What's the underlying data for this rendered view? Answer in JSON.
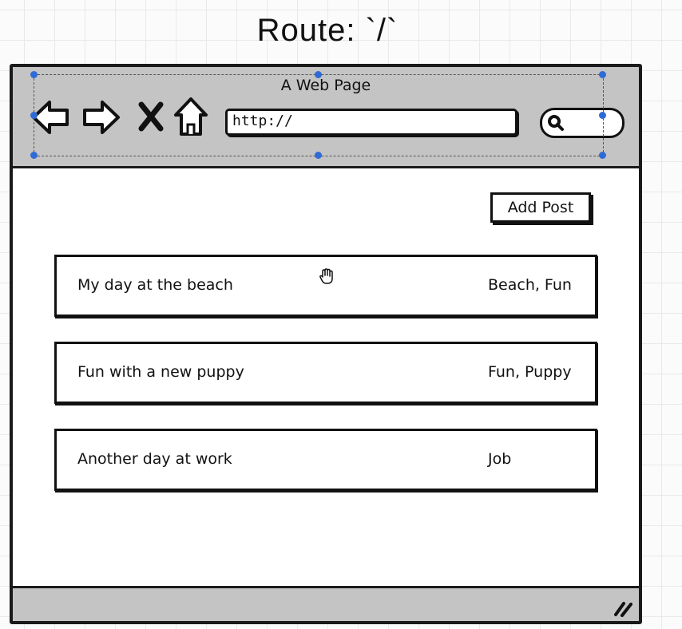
{
  "route_title": "Route: `/`",
  "browser": {
    "page_title": "A Web Page",
    "url": "http://",
    "icons": {
      "back": "back-arrow-icon",
      "forward": "forward-arrow-icon",
      "stop": "close-icon",
      "home": "home-icon",
      "search": "search-icon",
      "resize": "resize-grip-icon",
      "cursor": "hand-cursor-icon"
    }
  },
  "content": {
    "add_post_label": "Add Post",
    "posts": [
      {
        "title": "My day at the beach",
        "tags": "Beach, Fun"
      },
      {
        "title": "Fun with a new puppy",
        "tags": "Fun, Puppy"
      },
      {
        "title": "Another day at work",
        "tags": "Job"
      }
    ]
  },
  "colors": {
    "chrome": "#c4c4c4",
    "ink": "#111111",
    "selection_handle": "#2f6bd6"
  }
}
